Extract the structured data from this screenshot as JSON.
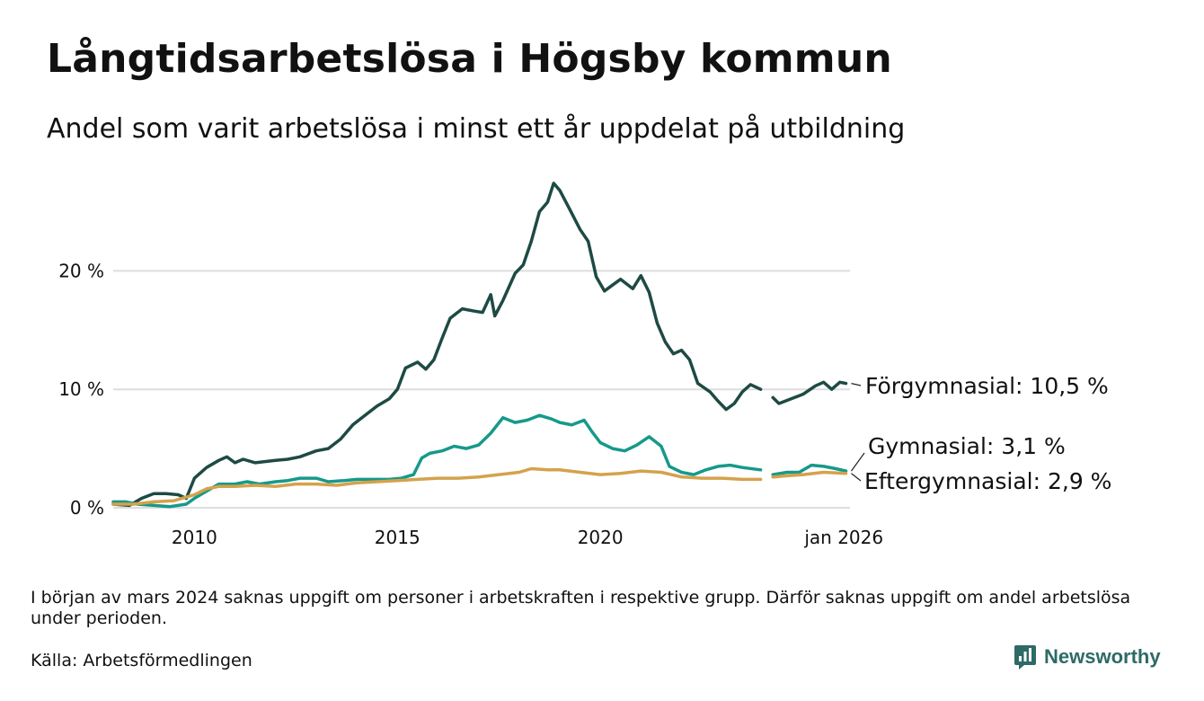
{
  "header": {
    "title": "Långtidsarbetslösa i Högsby kommun",
    "subtitle": "Andel som varit arbetslösa i minst ett år uppdelat på utbildning"
  },
  "footer": {
    "note": "I början av mars 2024 saknas uppgift om personer i arbetskraften i respektive grupp. Därför saknas uppgift om andel arbetslösa under perioden.",
    "source": "Källa: Arbetsförmedlingen",
    "brand": "Newsworthy",
    "brand_icon": "bar-chart-logo-icon"
  },
  "colors": {
    "forgymnasial": "#1e4a44",
    "gymnasial": "#16998a",
    "eftergymnasial": "#d4a24c",
    "grid": "#dddddd",
    "brand": "#2e6a66"
  },
  "chart_data": {
    "type": "line",
    "xlim": [
      2008.0,
      2026.15
    ],
    "ylim": [
      0,
      28
    ],
    "yticks": [
      {
        "value": 0,
        "label": "0 %"
      },
      {
        "value": 10,
        "label": "10 %"
      },
      {
        "value": 20,
        "label": "20 %"
      }
    ],
    "xticks": [
      {
        "value": 2010,
        "label": "2010"
      },
      {
        "value": 2015,
        "label": "2015"
      },
      {
        "value": 2020,
        "label": "2020"
      },
      {
        "value": 2026,
        "label": "jan 2026"
      }
    ],
    "gap": {
      "start": 2023.95,
      "end": 2024.25
    },
    "series": [
      {
        "key": "forgymnasial",
        "name": "Förgymnasial",
        "end_label": "Förgymnasial: 10,5 %",
        "values": [
          [
            2008.0,
            0.3
          ],
          [
            2008.4,
            0.2
          ],
          [
            2008.7,
            0.8
          ],
          [
            2009.0,
            1.2
          ],
          [
            2009.3,
            1.2
          ],
          [
            2009.6,
            1.1
          ],
          [
            2009.8,
            0.8
          ],
          [
            2010.0,
            2.5
          ],
          [
            2010.3,
            3.4
          ],
          [
            2010.6,
            4.0
          ],
          [
            2010.8,
            4.3
          ],
          [
            2011.0,
            3.8
          ],
          [
            2011.2,
            4.1
          ],
          [
            2011.5,
            3.8
          ],
          [
            2012.0,
            4.0
          ],
          [
            2012.3,
            4.1
          ],
          [
            2012.6,
            4.3
          ],
          [
            2013.0,
            4.8
          ],
          [
            2013.3,
            5.0
          ],
          [
            2013.6,
            5.8
          ],
          [
            2013.9,
            7.0
          ],
          [
            2014.2,
            7.8
          ],
          [
            2014.5,
            8.6
          ],
          [
            2014.8,
            9.2
          ],
          [
            2015.0,
            10.0
          ],
          [
            2015.2,
            11.8
          ],
          [
            2015.5,
            12.3
          ],
          [
            2015.7,
            11.7
          ],
          [
            2015.9,
            12.5
          ],
          [
            2016.1,
            14.3
          ],
          [
            2016.3,
            16.0
          ],
          [
            2016.6,
            16.8
          ],
          [
            2016.9,
            16.6
          ],
          [
            2017.1,
            16.5
          ],
          [
            2017.3,
            18.0
          ],
          [
            2017.4,
            16.2
          ],
          [
            2017.6,
            17.5
          ],
          [
            2017.9,
            19.8
          ],
          [
            2018.1,
            20.5
          ],
          [
            2018.3,
            22.5
          ],
          [
            2018.5,
            25.0
          ],
          [
            2018.7,
            25.8
          ],
          [
            2018.85,
            27.4
          ],
          [
            2019.0,
            26.8
          ],
          [
            2019.2,
            25.5
          ],
          [
            2019.5,
            23.5
          ],
          [
            2019.7,
            22.5
          ],
          [
            2019.9,
            19.5
          ],
          [
            2020.1,
            18.3
          ],
          [
            2020.3,
            18.8
          ],
          [
            2020.5,
            19.3
          ],
          [
            2020.8,
            18.5
          ],
          [
            2021.0,
            19.6
          ],
          [
            2021.2,
            18.2
          ],
          [
            2021.4,
            15.6
          ],
          [
            2021.6,
            14.0
          ],
          [
            2021.8,
            13.0
          ],
          [
            2022.0,
            13.3
          ],
          [
            2022.2,
            12.5
          ],
          [
            2022.4,
            10.5
          ],
          [
            2022.7,
            9.8
          ],
          [
            2022.9,
            9.0
          ],
          [
            2023.1,
            8.3
          ],
          [
            2023.3,
            8.8
          ],
          [
            2023.5,
            9.8
          ],
          [
            2023.7,
            10.4
          ],
          [
            2023.95,
            10.0
          ],
          [
            2024.25,
            9.3
          ],
          [
            2024.4,
            8.8
          ],
          [
            2024.7,
            9.2
          ],
          [
            2025.0,
            9.6
          ],
          [
            2025.3,
            10.3
          ],
          [
            2025.5,
            10.6
          ],
          [
            2025.7,
            10.0
          ],
          [
            2025.9,
            10.6
          ],
          [
            2026.05,
            10.5
          ]
        ]
      },
      {
        "key": "gymnasial",
        "name": "Gymnasial",
        "end_label": "Gymnasial:  3,1 %",
        "values": [
          [
            2008.0,
            0.5
          ],
          [
            2008.3,
            0.5
          ],
          [
            2008.6,
            0.3
          ],
          [
            2009.0,
            0.2
          ],
          [
            2009.4,
            0.1
          ],
          [
            2009.8,
            0.3
          ],
          [
            2010.0,
            0.8
          ],
          [
            2010.3,
            1.4
          ],
          [
            2010.6,
            2.0
          ],
          [
            2011.0,
            2.0
          ],
          [
            2011.3,
            2.2
          ],
          [
            2011.6,
            2.0
          ],
          [
            2012.0,
            2.2
          ],
          [
            2012.3,
            2.3
          ],
          [
            2012.6,
            2.5
          ],
          [
            2013.0,
            2.5
          ],
          [
            2013.3,
            2.2
          ],
          [
            2013.7,
            2.3
          ],
          [
            2014.0,
            2.4
          ],
          [
            2014.4,
            2.4
          ],
          [
            2014.8,
            2.4
          ],
          [
            2015.1,
            2.5
          ],
          [
            2015.4,
            2.8
          ],
          [
            2015.6,
            4.2
          ],
          [
            2015.8,
            4.6
          ],
          [
            2016.1,
            4.8
          ],
          [
            2016.4,
            5.2
          ],
          [
            2016.7,
            5.0
          ],
          [
            2017.0,
            5.3
          ],
          [
            2017.3,
            6.3
          ],
          [
            2017.6,
            7.6
          ],
          [
            2017.9,
            7.2
          ],
          [
            2018.2,
            7.4
          ],
          [
            2018.5,
            7.8
          ],
          [
            2018.8,
            7.5
          ],
          [
            2019.0,
            7.2
          ],
          [
            2019.3,
            7.0
          ],
          [
            2019.6,
            7.4
          ],
          [
            2019.8,
            6.4
          ],
          [
            2020.0,
            5.5
          ],
          [
            2020.3,
            5.0
          ],
          [
            2020.6,
            4.8
          ],
          [
            2020.9,
            5.3
          ],
          [
            2021.2,
            6.0
          ],
          [
            2021.5,
            5.2
          ],
          [
            2021.7,
            3.5
          ],
          [
            2022.0,
            3.0
          ],
          [
            2022.3,
            2.8
          ],
          [
            2022.6,
            3.2
          ],
          [
            2022.9,
            3.5
          ],
          [
            2023.2,
            3.6
          ],
          [
            2023.5,
            3.4
          ],
          [
            2023.95,
            3.2
          ],
          [
            2024.25,
            2.8
          ],
          [
            2024.6,
            3.0
          ],
          [
            2024.9,
            3.0
          ],
          [
            2025.2,
            3.6
          ],
          [
            2025.5,
            3.5
          ],
          [
            2025.8,
            3.3
          ],
          [
            2026.05,
            3.1
          ]
        ]
      },
      {
        "key": "eftergymnasial",
        "name": "Eftergymnasial",
        "end_label": "Eftergymnasial:  2,9 %",
        "values": [
          [
            2008.0,
            0.3
          ],
          [
            2008.5,
            0.3
          ],
          [
            2009.0,
            0.5
          ],
          [
            2009.5,
            0.6
          ],
          [
            2010.0,
            1.1
          ],
          [
            2010.3,
            1.6
          ],
          [
            2010.6,
            1.8
          ],
          [
            2011.0,
            1.8
          ],
          [
            2011.5,
            1.9
          ],
          [
            2012.0,
            1.8
          ],
          [
            2012.5,
            2.0
          ],
          [
            2013.0,
            2.0
          ],
          [
            2013.5,
            1.9
          ],
          [
            2014.0,
            2.1
          ],
          [
            2014.5,
            2.2
          ],
          [
            2015.0,
            2.3
          ],
          [
            2015.5,
            2.4
          ],
          [
            2016.0,
            2.5
          ],
          [
            2016.5,
            2.5
          ],
          [
            2017.0,
            2.6
          ],
          [
            2017.5,
            2.8
          ],
          [
            2018.0,
            3.0
          ],
          [
            2018.3,
            3.3
          ],
          [
            2018.7,
            3.2
          ],
          [
            2019.0,
            3.2
          ],
          [
            2019.5,
            3.0
          ],
          [
            2020.0,
            2.8
          ],
          [
            2020.5,
            2.9
          ],
          [
            2021.0,
            3.1
          ],
          [
            2021.5,
            3.0
          ],
          [
            2022.0,
            2.6
          ],
          [
            2022.5,
            2.5
          ],
          [
            2023.0,
            2.5
          ],
          [
            2023.5,
            2.4
          ],
          [
            2023.95,
            2.4
          ],
          [
            2024.25,
            2.6
          ],
          [
            2024.6,
            2.7
          ],
          [
            2025.0,
            2.8
          ],
          [
            2025.5,
            3.0
          ],
          [
            2026.05,
            2.9
          ]
        ]
      }
    ]
  }
}
